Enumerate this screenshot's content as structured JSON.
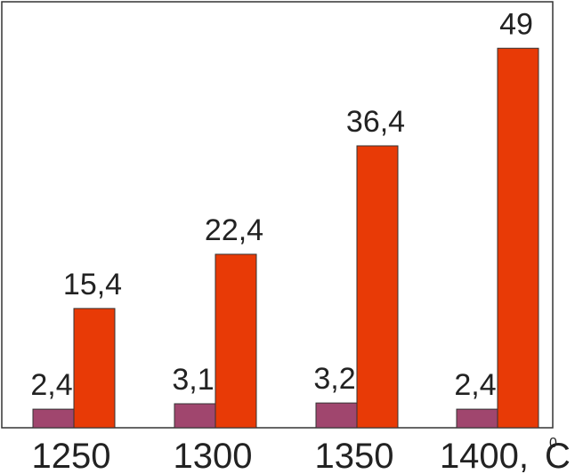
{
  "chart_data": {
    "type": "bar",
    "categories": [
      "1250",
      "1300",
      "1350",
      "1400,"
    ],
    "x_unit": "C",
    "x_unit_degree": "0",
    "series": [
      {
        "values": [
          2.4,
          3.1,
          3.2,
          2.4
        ],
        "labels": [
          "2,4",
          "3,1",
          "3,2",
          "2,4"
        ],
        "color": "#a0466e"
      },
      {
        "values": [
          15.4,
          22.4,
          36.4,
          49
        ],
        "labels": [
          "15,4",
          "22,4",
          "36,4",
          "49"
        ],
        "color": "#e83a06"
      }
    ],
    "ylim": [
      0,
      55
    ],
    "grid": false,
    "legend": "none"
  }
}
